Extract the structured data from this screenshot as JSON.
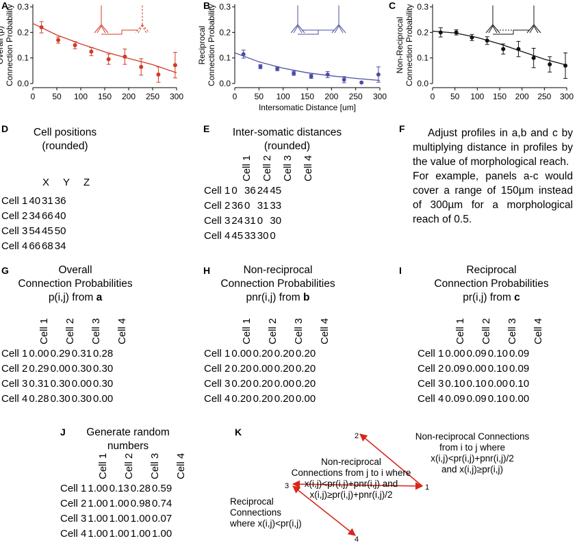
{
  "panels": {
    "A": {
      "label": "A",
      "ylabel": "Overall (p)\nConnection Probability",
      "color": "#d23a26",
      "ylim": [
        0,
        0.3
      ],
      "yticks": [
        "0.0",
        "0.1",
        "0.2",
        "0.3"
      ],
      "xticks": [
        "0",
        "50",
        "100",
        "150",
        "200",
        "250",
        "300"
      ]
    },
    "B": {
      "label": "B",
      "ylabel": "Reciprocal\nConnection Probability",
      "color": "#4a4ea6",
      "ylim": [
        0,
        0.3
      ],
      "yticks": [
        "0.0",
        "0.1",
        "0.2",
        "0.3"
      ],
      "xticks": [
        "0",
        "50",
        "100",
        "150",
        "200",
        "250",
        "300"
      ],
      "xlabel": "Intersomatic Distance [um]"
    },
    "C": {
      "label": "C",
      "ylabel": "Non-Reciprocal\nConnection Probability",
      "color": "#111111",
      "ylim": [
        0,
        0.3
      ],
      "yticks": [
        "0.0",
        "0.1",
        "0.2",
        "0.3"
      ],
      "xticks": [
        "0",
        "50",
        "100",
        "150",
        "200",
        "250",
        "300"
      ]
    },
    "D": {
      "label": "D",
      "title": "Cell positions\n(rounded)",
      "headers": [
        "X",
        "Y",
        "Z"
      ],
      "rows": [
        {
          "name": "Cell 1",
          "vals": [
            "40",
            "31",
            "36"
          ]
        },
        {
          "name": "Cell 2",
          "vals": [
            "34",
            "66",
            "40"
          ]
        },
        {
          "name": "Cell 3",
          "vals": [
            "54",
            "45",
            "50"
          ]
        },
        {
          "name": "Cell 4",
          "vals": [
            "66",
            "68",
            "34"
          ]
        }
      ]
    },
    "E": {
      "label": "E",
      "title": "Inter-somatic distances\n(rounded)",
      "headers": [
        "Cell 1",
        "Cell 2",
        "Cell 3",
        "Cell 4"
      ],
      "rows": [
        {
          "name": "Cell 1",
          "vals": [
            "0",
            "36",
            "24",
            "45"
          ]
        },
        {
          "name": "Cell 2",
          "vals": [
            "36",
            "0",
            "31",
            "33"
          ]
        },
        {
          "name": "Cell 3",
          "vals": [
            "24",
            "31",
            "0",
            "30"
          ]
        },
        {
          "name": "Cell 4",
          "vals": [
            "45",
            "33",
            "30",
            "0"
          ]
        }
      ]
    },
    "F": {
      "label": "F",
      "para1": "Adjust profiles in a,b and c by multiplying distance in profiles by the value of morphological reach.",
      "para2": "For example, panels a-c would cover a range of 150µm instead of 300µm for a morphological reach of 0.5."
    },
    "G": {
      "label": "G",
      "title1": "Overall",
      "title2": "Connection Probabilities",
      "title3": "p(i,j) from ",
      "title_bold": "a",
      "headers": [
        "Cell 1",
        "Cell 2",
        "Cell 3",
        "Cell 4"
      ],
      "rows": [
        {
          "name": "Cell 1",
          "vals": [
            "0.00",
            "0.29",
            "0.31",
            "0.28"
          ]
        },
        {
          "name": "Cell 2",
          "vals": [
            "0.29",
            "0.00",
            "0.30",
            "0.30"
          ]
        },
        {
          "name": "Cell 3",
          "vals": [
            "0.31",
            "0.30",
            "0.00",
            "0.30"
          ]
        },
        {
          "name": "Cell 4",
          "vals": [
            "0.28",
            "0.30",
            "0.30",
            "0.00"
          ]
        }
      ]
    },
    "H": {
      "label": "H",
      "title1": "Non-reciprocal",
      "title2": "Connection Probabilities",
      "title3": "pnr(i,j) from ",
      "title_bold": "b",
      "headers": [
        "Cell 1",
        "Cell 2",
        "Cell 3",
        "Cell 4"
      ],
      "rows": [
        {
          "name": "Cell 1",
          "vals": [
            "0.00",
            "0.20",
            "0.20",
            "0.20"
          ]
        },
        {
          "name": "Cell 2",
          "vals": [
            "0.20",
            "0.00",
            "0.20",
            "0.20"
          ]
        },
        {
          "name": "Cell 3",
          "vals": [
            "0.20",
            "0.20",
            "0.00",
            "0.20"
          ]
        },
        {
          "name": "Cell 4",
          "vals": [
            "0.20",
            "0.20",
            "0.20",
            "0.00"
          ]
        }
      ]
    },
    "I": {
      "label": "I",
      "title1": "Reciprocal",
      "title2": "Connection Probabilities",
      "title3": "pr(i,j) from ",
      "title_bold": "c",
      "headers": [
        "Cell 1",
        "Cell 2",
        "Cell 3",
        "Cell 4"
      ],
      "rows": [
        {
          "name": "Cell 1",
          "vals": [
            "0.00",
            "0.09",
            "0.10",
            "0.09"
          ]
        },
        {
          "name": "Cell 2",
          "vals": [
            "0.09",
            "0.00",
            "0.10",
            "0.09"
          ]
        },
        {
          "name": "Cell 3",
          "vals": [
            "0.10",
            "0.10",
            "0.00",
            "0.10"
          ]
        },
        {
          "name": "Cell 4",
          "vals": [
            "0.09",
            "0.09",
            "0.10",
            "0.00"
          ]
        }
      ]
    },
    "J": {
      "label": "J",
      "title": "Generate random\nnumbers",
      "headers": [
        "Cell 1",
        "Cell 2",
        "Cell 3",
        "Cell 4"
      ],
      "rows": [
        {
          "name": "Cell 1",
          "vals": [
            "1.00",
            "0.13",
            "0.28",
            "0.59"
          ]
        },
        {
          "name": "Cell 2",
          "vals": [
            "1.00",
            "1.00",
            "0.98",
            "0.74"
          ]
        },
        {
          "name": "Cell 3",
          "vals": [
            "1.00",
            "1.00",
            "1.00",
            "0.07"
          ]
        },
        {
          "name": "Cell 4",
          "vals": [
            "1.00",
            "1.00",
            "1.00",
            "1.00"
          ]
        }
      ]
    },
    "K": {
      "label": "K",
      "node1": "1",
      "node2": "2",
      "node3": "3",
      "node4": "4",
      "nonrecip_i_to_j": "Non-reciprocal Connections\nfrom i to j where\nx(i,j)<pr(i,j)+pnr(i,j)/2\nand x(i,j)≥pr(i,j)",
      "nonrecip_j_to_i": "Non-reciprocal\nConnections from j to i where\nx(i,j)<pr(i,j)+pnr(i,j) and\nx(i,j)≥pr(i,j)+pnr(i,j)/2",
      "reciprocal": "Reciprocal\nConnections\nwhere x(i,j)<pr(i,j)"
    }
  },
  "chart_data": [
    {
      "type": "scatter",
      "title": "A",
      "ylabel": "Overall (p) Connection Probability",
      "xlabel": "",
      "xlim": [
        0,
        300
      ],
      "ylim": [
        0,
        0.3
      ],
      "x": [
        18,
        53,
        88,
        122,
        158,
        192,
        226,
        262,
        297
      ],
      "y": [
        0.22,
        0.17,
        0.15,
        0.125,
        0.095,
        0.105,
        0.065,
        0.035,
        0.072
      ],
      "err": [
        0.022,
        0.012,
        0.014,
        0.016,
        0.02,
        0.03,
        0.032,
        0.03,
        0.05
      ],
      "fit": [
        [
          0,
          0.235
        ],
        [
          50,
          0.19
        ],
        [
          100,
          0.155
        ],
        [
          150,
          0.124
        ],
        [
          200,
          0.098
        ],
        [
          250,
          0.074
        ],
        [
          300,
          0.042
        ]
      ]
    },
    {
      "type": "scatter",
      "title": "B",
      "ylabel": "Reciprocal Connection Probability",
      "xlabel": "Intersomatic Distance [um]",
      "xlim": [
        0,
        300
      ],
      "ylim": [
        0,
        0.3
      ],
      "x": [
        18,
        53,
        88,
        122,
        158,
        192,
        226,
        262,
        297
      ],
      "y": [
        0.115,
        0.066,
        0.058,
        0.04,
        0.028,
        0.035,
        0.015,
        0.004,
        0.035
      ],
      "err": [
        0.016,
        0.008,
        0.008,
        0.008,
        0.008,
        0.012,
        0.012,
        0.0,
        0.03
      ],
      "fit": [
        [
          0,
          0.12
        ],
        [
          50,
          0.085
        ],
        [
          100,
          0.06
        ],
        [
          150,
          0.042
        ],
        [
          200,
          0.03
        ],
        [
          250,
          0.02
        ],
        [
          300,
          0.012
        ]
      ]
    },
    {
      "type": "scatter",
      "title": "C",
      "ylabel": "Non-Reciprocal Connection Probability",
      "xlabel": "",
      "xlim": [
        0,
        300
      ],
      "ylim": [
        0,
        0.3
      ],
      "x": [
        18,
        53,
        88,
        122,
        158,
        192,
        226,
        262,
        297
      ],
      "y": [
        0.2,
        0.2,
        0.18,
        0.168,
        0.135,
        0.135,
        0.1,
        0.075,
        0.07
      ],
      "err": [
        0.018,
        0.01,
        0.012,
        0.015,
        0.02,
        0.03,
        0.038,
        0.03,
        0.05
      ],
      "fit": [
        [
          0,
          0.205
        ],
        [
          50,
          0.198
        ],
        [
          100,
          0.18
        ],
        [
          150,
          0.155
        ],
        [
          200,
          0.125
        ],
        [
          250,
          0.095
        ],
        [
          300,
          0.072
        ]
      ]
    }
  ]
}
